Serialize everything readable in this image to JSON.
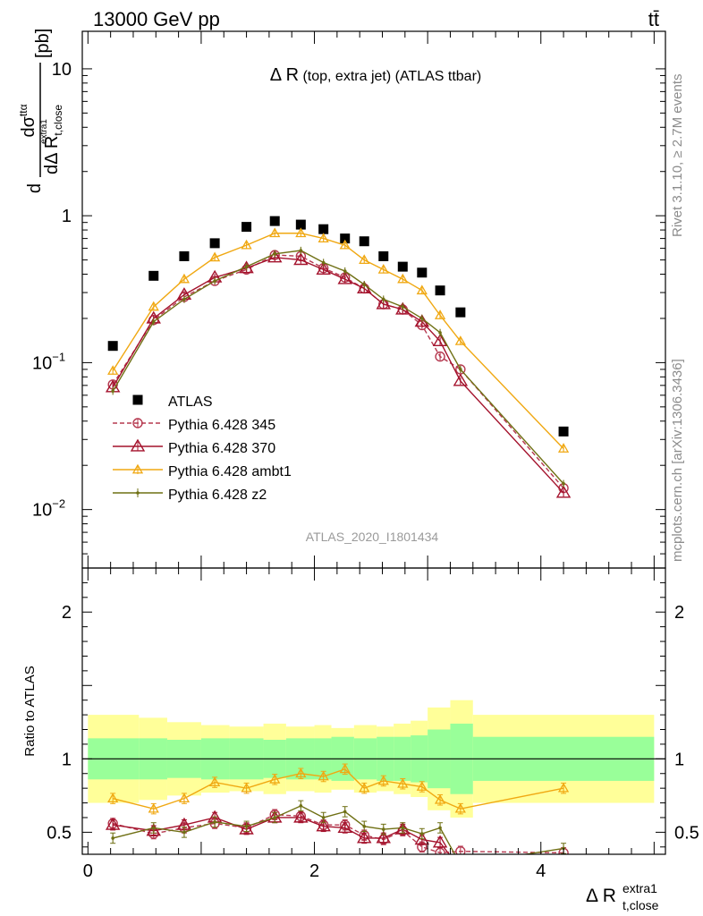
{
  "header": {
    "left": "13000 GeV pp",
    "right": "tt̄"
  },
  "side_labels": {
    "rivet": "Rivet 3.1.10, ≥ 2.7M events",
    "mcplots": "mcplots.cern.ch [arXiv:1306.3436]"
  },
  "main_title": {
    "symbol": "Δ R",
    "detail": " (top, extra jet) (ATLAS ttbar)"
  },
  "watermark": "ATLAS_2020_I1801434",
  "y_axis": {
    "d": "d",
    "numerator": "dσ",
    "numerator_sup": "ttα",
    "denominator": "dΔ R",
    "denominator_sub": "t,close",
    "denominator_sup": "extra1",
    "unit": "[pb]"
  },
  "ratio_ylabel": "Ratio to ATLAS",
  "x_axis": {
    "label": "Δ R",
    "sub": "t,close",
    "sup": "extra1"
  },
  "colors": {
    "atlas": "#000000",
    "p345": "#b5384f",
    "p370": "#a4122c",
    "ambt1": "#f0a812",
    "z2": "#6f7014",
    "band_inner": "#99ff99",
    "band_outer": "#ffff99"
  },
  "chart_data": {
    "type": "scatter",
    "x": [
      0.22,
      0.58,
      0.85,
      1.12,
      1.4,
      1.65,
      1.88,
      2.08,
      2.27,
      2.44,
      2.61,
      2.78,
      2.95,
      3.11,
      3.29,
      4.2
    ],
    "main": {
      "x_range": [
        -0.05,
        5.1
      ],
      "y_range": [
        0.004,
        18
      ],
      "y_scale": "log",
      "y_ticks": [
        {
          "value": 0.01,
          "label": "10",
          "sup": "−2"
        },
        {
          "value": 0.1,
          "label": "10",
          "sup": "−1"
        },
        {
          "value": 1,
          "label": "1",
          "sup": ""
        },
        {
          "value": 10,
          "label": "10",
          "sup": ""
        }
      ]
    },
    "ratio": {
      "y_range": [
        0.35,
        2.3
      ],
      "y_ticks": [
        {
          "value": 0.5,
          "label": "0.5"
        },
        {
          "value": 1,
          "label": "1"
        },
        {
          "value": 2,
          "label": "2"
        }
      ]
    },
    "x_ticks": [
      {
        "value": 0,
        "label": "0"
      },
      {
        "value": 2,
        "label": "2"
      },
      {
        "value": 4,
        "label": "4"
      }
    ],
    "bins": [
      0,
      0.45,
      0.7,
      1.0,
      1.25,
      1.55,
      1.75,
      2.0,
      2.15,
      2.35,
      2.55,
      2.7,
      2.85,
      3.0,
      3.2,
      3.4,
      5.0
    ],
    "band_inner": [
      0.14,
      0.14,
      0.13,
      0.14,
      0.14,
      0.13,
      0.14,
      0.14,
      0.15,
      0.14,
      0.15,
      0.15,
      0.16,
      0.2,
      0.24,
      0.15
    ],
    "band_outer": [
      0.3,
      0.28,
      0.25,
      0.23,
      0.22,
      0.24,
      0.22,
      0.23,
      0.21,
      0.23,
      0.22,
      0.24,
      0.26,
      0.35,
      0.4,
      0.3
    ],
    "series": [
      {
        "name": "ATLAS",
        "marker": "square",
        "line": false,
        "values": [
          0.13,
          0.39,
          0.53,
          0.65,
          0.84,
          0.92,
          0.87,
          0.81,
          0.7,
          0.67,
          0.53,
          0.45,
          0.41,
          0.31,
          0.22,
          0.034
        ],
        "ratio": [
          1,
          1,
          1,
          1,
          1,
          1,
          1,
          1,
          1,
          1,
          1,
          1,
          1,
          1,
          1,
          1
        ]
      },
      {
        "name": "Pythia 6.428 345",
        "marker": "circle",
        "dash": "5,3",
        "values": [
          0.071,
          0.195,
          0.28,
          0.36,
          0.43,
          0.54,
          0.53,
          0.44,
          0.38,
          0.32,
          0.25,
          0.23,
          0.18,
          0.11,
          0.09,
          0.014
        ],
        "ratio": [
          0.56,
          0.49,
          0.53,
          0.56,
          0.53,
          0.62,
          0.61,
          0.55,
          0.55,
          0.48,
          0.45,
          0.51,
          0.4,
          0.36,
          0.37,
          0.36
        ]
      },
      {
        "name": "Pythia 6.428 370",
        "marker": "triangle",
        "dash": "",
        "values": [
          0.068,
          0.2,
          0.29,
          0.38,
          0.44,
          0.52,
          0.5,
          0.43,
          0.37,
          0.32,
          0.25,
          0.23,
          0.19,
          0.14,
          0.075,
          0.013
        ],
        "ratio": [
          0.55,
          0.51,
          0.55,
          0.6,
          0.52,
          0.6,
          0.6,
          0.54,
          0.53,
          0.46,
          0.46,
          0.52,
          0.45,
          0.43,
          0.25,
          0.25
        ]
      },
      {
        "name": "Pythia 6.428 ambt1",
        "marker": "triangle-small",
        "dash": "",
        "values": [
          0.088,
          0.24,
          0.37,
          0.52,
          0.63,
          0.76,
          0.76,
          0.7,
          0.63,
          0.5,
          0.43,
          0.37,
          0.31,
          0.21,
          0.14,
          0.026
        ],
        "ratio": [
          0.73,
          0.66,
          0.73,
          0.84,
          0.8,
          0.86,
          0.9,
          0.88,
          0.93,
          0.8,
          0.85,
          0.83,
          0.81,
          0.72,
          0.66,
          0.8
        ]
      },
      {
        "name": "Pythia 6.428 z2",
        "marker": "dot",
        "dash": "",
        "values": [
          0.064,
          0.19,
          0.27,
          0.36,
          0.45,
          0.55,
          0.58,
          0.48,
          0.42,
          0.34,
          0.27,
          0.24,
          0.2,
          0.16,
          0.09,
          0.015
        ],
        "ratio": [
          0.46,
          0.53,
          0.5,
          0.57,
          0.54,
          0.6,
          0.68,
          0.6,
          0.64,
          0.54,
          0.52,
          0.53,
          0.49,
          0.53,
          0.28,
          0.39
        ]
      }
    ]
  }
}
